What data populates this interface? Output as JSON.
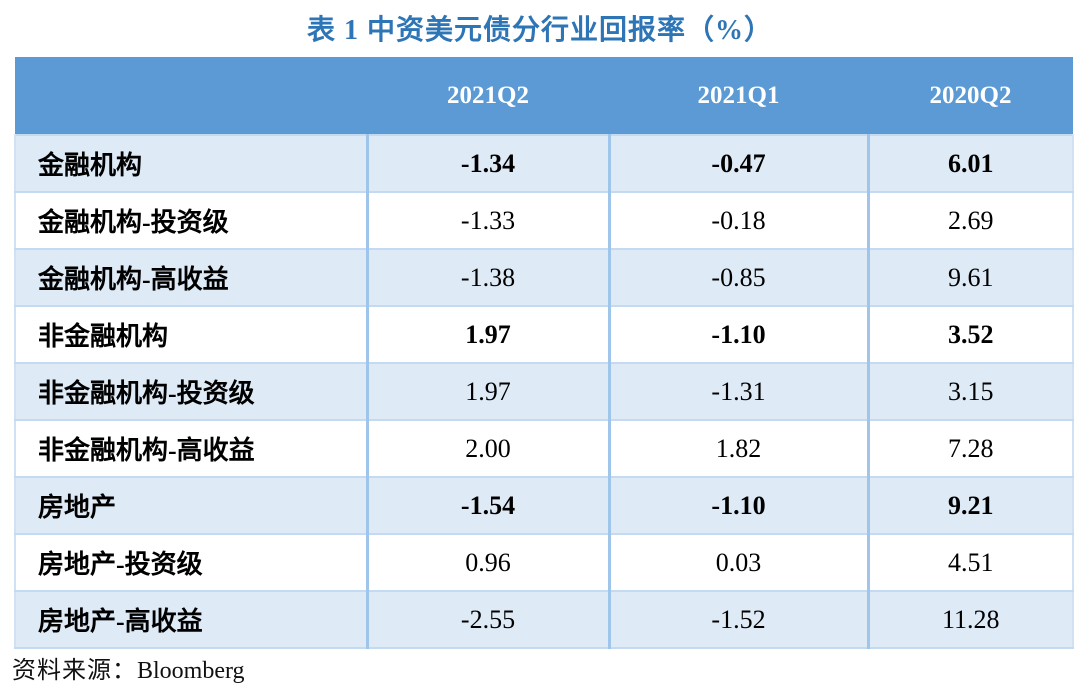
{
  "title": "表 1 中资美元债分行业回报率（%）",
  "table": {
    "columns": [
      "",
      "2021Q2",
      "2021Q1",
      "2020Q2"
    ],
    "rows": [
      {
        "label": "金融机构",
        "values": [
          "-1.34",
          "-0.47",
          "6.01"
        ],
        "emphasis": true
      },
      {
        "label": "金融机构-投资级",
        "values": [
          "-1.33",
          "-0.18",
          "2.69"
        ],
        "emphasis": false
      },
      {
        "label": "金融机构-高收益",
        "values": [
          "-1.38",
          "-0.85",
          "9.61"
        ],
        "emphasis": false
      },
      {
        "label": "非金融机构",
        "values": [
          "1.97",
          "-1.10",
          "3.52"
        ],
        "emphasis": true
      },
      {
        "label": "非金融机构-投资级",
        "values": [
          "1.97",
          "-1.31",
          "3.15"
        ],
        "emphasis": false
      },
      {
        "label": "非金融机构-高收益",
        "values": [
          "2.00",
          "1.82",
          "7.28"
        ],
        "emphasis": false
      },
      {
        "label": "房地产",
        "values": [
          "-1.54",
          "-1.10",
          "9.21"
        ],
        "emphasis": true
      },
      {
        "label": "房地产-投资级",
        "values": [
          "0.96",
          "0.03",
          "4.51"
        ],
        "emphasis": false
      },
      {
        "label": "房地产-高收益",
        "values": [
          "-2.55",
          "-1.52",
          "11.28"
        ],
        "emphasis": false
      }
    ]
  },
  "footer": {
    "source_label": "资料来源：",
    "source_value": "Bloomberg"
  },
  "colors": {
    "title_text": "#2e75b6",
    "header_bg": "#5b9ad5",
    "header_text": "#ffffff",
    "row_shaded_bg": "#deeaf6",
    "row_divider": "#c3daf0",
    "column_divider": "#9fc6ea",
    "body_text": "#000000"
  },
  "chart_data": {
    "type": "table",
    "title": "表 1 中资美元债分行业回报率（%）",
    "unit": "%",
    "categories": [
      "金融机构",
      "金融机构-投资级",
      "金融机构-高收益",
      "非金融机构",
      "非金融机构-投资级",
      "非金融机构-高收益",
      "房地产",
      "房地产-投资级",
      "房地产-高收益"
    ],
    "series": [
      {
        "name": "2021Q2",
        "values": [
          -1.34,
          -1.33,
          -1.38,
          1.97,
          1.97,
          2.0,
          -1.54,
          0.96,
          -2.55
        ]
      },
      {
        "name": "2021Q1",
        "values": [
          -0.47,
          -0.18,
          -0.85,
          -1.1,
          -1.31,
          1.82,
          -1.1,
          0.03,
          -1.52
        ]
      },
      {
        "name": "2020Q2",
        "values": [
          6.01,
          2.69,
          9.61,
          3.52,
          3.15,
          7.28,
          9.21,
          4.51,
          11.28
        ]
      }
    ],
    "emphasized_rows": [
      "金融机构",
      "非金融机构",
      "房地产"
    ],
    "source": "Bloomberg"
  }
}
